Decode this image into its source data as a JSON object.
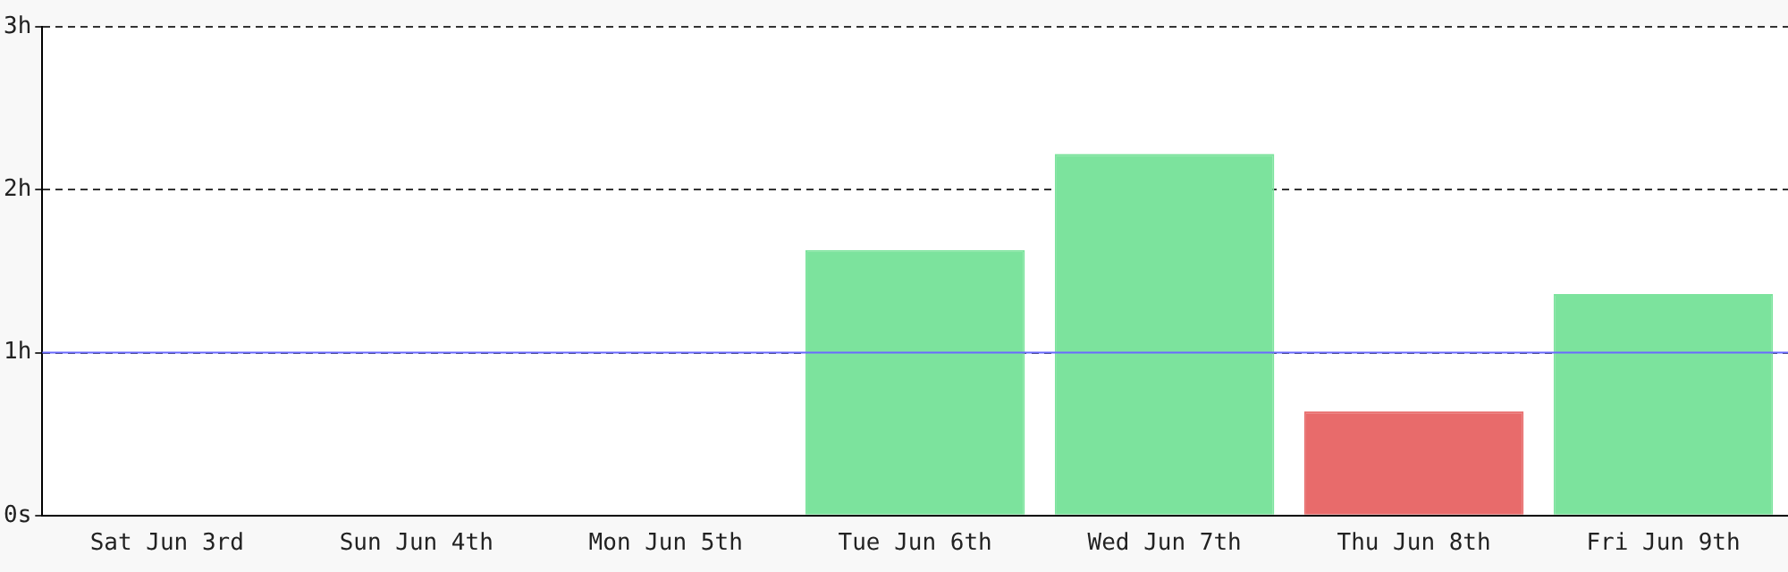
{
  "chart_data": {
    "type": "bar",
    "categories": [
      "Sat Jun 3rd",
      "Sun Jun 4th",
      "Mon Jun 5th",
      "Tue Jun 6th",
      "Wed Jun 7th",
      "Thu Jun 8th",
      "Fri Jun 9th"
    ],
    "values": [
      0,
      0,
      0,
      1.63,
      2.22,
      0.64,
      1.36
    ],
    "colors": [
      "#7ce39d",
      "#7ce39d",
      "#7ce39d",
      "#7ce39d",
      "#7ce39d",
      "#e86b6b",
      "#7ce39d"
    ],
    "ylim": [
      0,
      3
    ],
    "yticks": [
      {
        "value": 0,
        "label": "0s"
      },
      {
        "value": 1,
        "label": "1h"
      },
      {
        "value": 2,
        "label": "2h"
      },
      {
        "value": 3,
        "label": "3h"
      }
    ],
    "grid": "y",
    "line_style": "dashed",
    "ref_lines": [
      {
        "axis": "y",
        "value": 1,
        "color": "#6a6aff"
      }
    ]
  }
}
